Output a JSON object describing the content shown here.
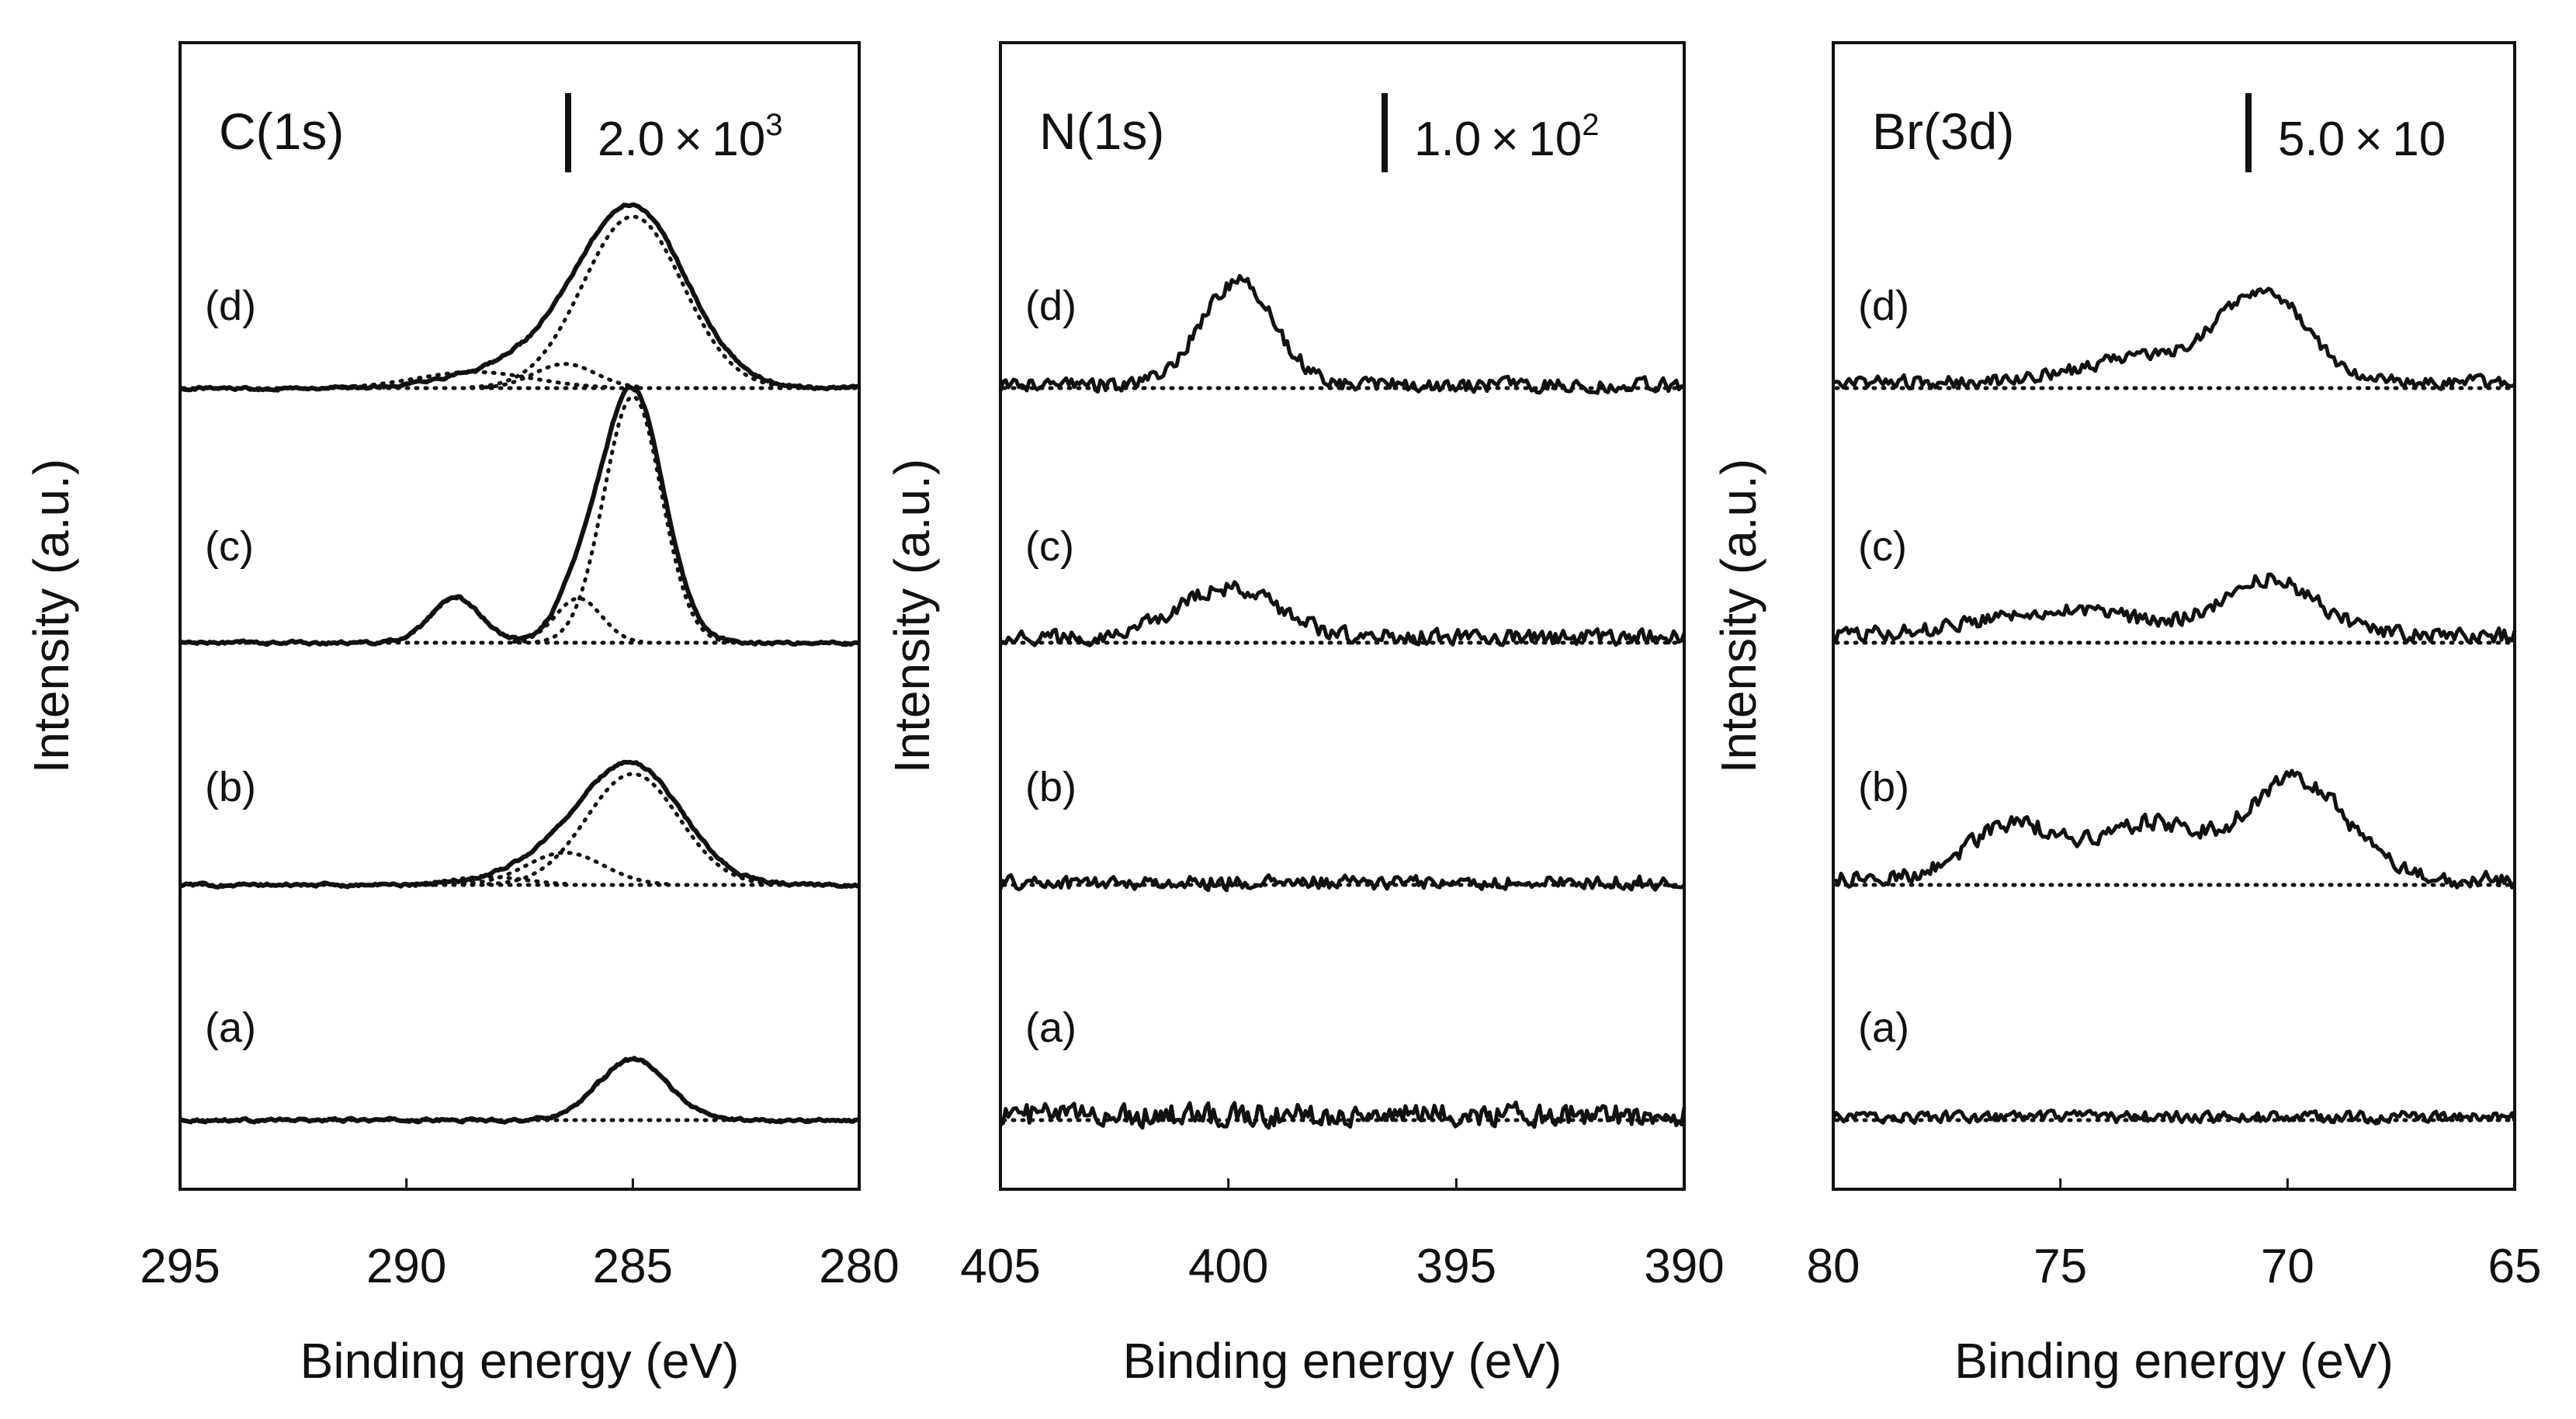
{
  "chart_data": [
    {
      "type": "line",
      "title": "C(1s)",
      "scale_bar": {
        "mantissa": "2.0",
        "times": "×",
        "base": "10",
        "exponent": "3"
      },
      "xlabel": "Binding energy (eV)",
      "ylabel": "Intensity (a.u.)",
      "xlim": [
        295,
        280
      ],
      "x_reversed": true,
      "xticks": [
        "295",
        "290",
        "285",
        "280"
      ],
      "grid": false,
      "series": [
        {
          "name": "(a)",
          "measured": {
            "baseline": 0,
            "noise": 0.015,
            "peaks": [
              {
                "center": 285.0,
                "height": 0.3,
                "fwhm": 1.8
              }
            ]
          },
          "fit_components": [
            {
              "center": 285.0,
              "height": 0.3,
              "fwhm": 1.8
            }
          ]
        },
        {
          "name": "(b)",
          "measured": {
            "baseline": 0,
            "noise": 0.015,
            "peaks": [
              {
                "center": 285.0,
                "height": 0.58,
                "fwhm": 2.6
              },
              {
                "center": 286.8,
                "height": 0.1,
                "fwhm": 2.6
              }
            ]
          },
          "fit_components": [
            {
              "center": 285.0,
              "height": 0.55,
              "fwhm": 2.4
            },
            {
              "center": 286.5,
              "height": 0.16,
              "fwhm": 2.0
            },
            {
              "center": 288.2,
              "height": 0.04,
              "fwhm": 2.0
            }
          ]
        },
        {
          "name": "(c)",
          "measured": {
            "baseline": 0,
            "noise": 0.015,
            "peaks": [
              {
                "center": 285.0,
                "height": 1.25,
                "fwhm": 1.6
              },
              {
                "center": 286.2,
                "height": 0.22,
                "fwhm": 1.2
              },
              {
                "center": 288.9,
                "height": 0.22,
                "fwhm": 1.3
              }
            ]
          },
          "fit_components": [
            {
              "center": 285.0,
              "height": 1.22,
              "fwhm": 1.5
            },
            {
              "center": 286.2,
              "height": 0.22,
              "fwhm": 1.2
            },
            {
              "center": 288.9,
              "height": 0.22,
              "fwhm": 1.3
            }
          ]
        },
        {
          "name": "(d)",
          "measured": {
            "baseline": 0,
            "noise": 0.015,
            "peaks": [
              {
                "center": 285.0,
                "height": 0.88,
                "fwhm": 2.8
              },
              {
                "center": 287.3,
                "height": 0.12,
                "fwhm": 3.2
              }
            ]
          },
          "fit_components": [
            {
              "center": 285.0,
              "height": 0.85,
              "fwhm": 2.6
            },
            {
              "center": 286.5,
              "height": 0.12,
              "fwhm": 1.6
            },
            {
              "center": 288.5,
              "height": 0.08,
              "fwhm": 3.0
            }
          ]
        }
      ]
    },
    {
      "type": "line",
      "title": "N(1s)",
      "scale_bar": {
        "mantissa": "1.0",
        "times": "×",
        "base": "10",
        "exponent": "2"
      },
      "xlabel": "Binding energy (eV)",
      "ylabel": "Intensity (a.u.)",
      "xlim": [
        405,
        390
      ],
      "x_reversed": true,
      "xticks": [
        "405",
        "400",
        "395",
        "390"
      ],
      "grid": false,
      "series": [
        {
          "name": "(a)",
          "measured": {
            "baseline": 0.05,
            "noise": 0.13,
            "peaks": []
          }
        },
        {
          "name": "(b)",
          "measured": {
            "baseline": 0.02,
            "noise": 0.08,
            "peaks": []
          }
        },
        {
          "name": "(c)",
          "measured": {
            "baseline": 0.05,
            "noise": 0.09,
            "peaks": [
              {
                "center": 400.0,
                "height": 0.45,
                "fwhm": 2.6
              }
            ]
          }
        },
        {
          "name": "(d)",
          "measured": {
            "baseline": 0.03,
            "noise": 0.08,
            "peaks": [
              {
                "center": 399.8,
                "height": 0.95,
                "fwhm": 1.9
              }
            ]
          }
        }
      ]
    },
    {
      "type": "line",
      "title": "Br(3d)",
      "scale_bar": {
        "mantissa": "5.0",
        "times": "×",
        "base": "10",
        "exponent": ""
      },
      "xlabel": "Binding energy (eV)",
      "ylabel": "Intensity (a.u.)",
      "xlim": [
        80,
        65
      ],
      "x_reversed": true,
      "xticks": [
        "80",
        "75",
        "70",
        "65"
      ],
      "grid": false,
      "series": [
        {
          "name": "(a)",
          "measured": {
            "baseline": 0.03,
            "noise": 0.07,
            "peaks": []
          }
        },
        {
          "name": "(b)",
          "measured": {
            "baseline": 0.05,
            "noise": 0.1,
            "peaks": [
              {
                "center": 76.0,
                "height": 0.55,
                "fwhm": 2.5
              },
              {
                "center": 73.0,
                "height": 0.55,
                "fwhm": 2.5
              },
              {
                "center": 69.8,
                "height": 1.0,
                "fwhm": 2.6
              }
            ]
          }
        },
        {
          "name": "(c)",
          "measured": {
            "baseline": 0.08,
            "noise": 0.09,
            "peaks": [
              {
                "center": 75.0,
                "height": 0.25,
                "fwhm": 4.0
              },
              {
                "center": 70.4,
                "height": 0.55,
                "fwhm": 2.4
              }
            ]
          }
        },
        {
          "name": "(d)",
          "measured": {
            "baseline": 0.06,
            "noise": 0.08,
            "peaks": [
              {
                "center": 73.0,
                "height": 0.25,
                "fwhm": 3.5
              },
              {
                "center": 70.5,
                "height": 0.85,
                "fwhm": 2.2
              }
            ]
          }
        }
      ]
    }
  ]
}
